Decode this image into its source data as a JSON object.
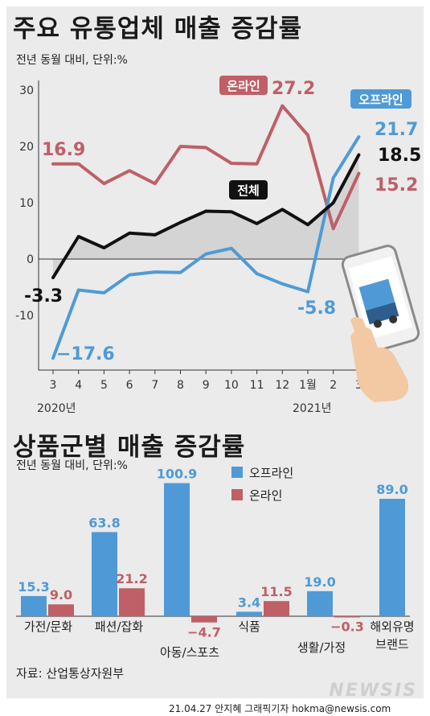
{
  "chart1": {
    "title": "주요 유통업체 매출 증감률",
    "subtitle": "전년 동월 대비, 단위:%"
  },
  "chart2": {
    "title": "상품군별 매출 증감률",
    "subtitle": "전년 동월 대비, 단위:%"
  },
  "source": "자료: 산업통상자원부",
  "credit": "21.04.27 안지혜 그래픽기자 hokma@newsis.com",
  "watermark": "NEWSIS",
  "colors": {
    "offline": "#4f9ad6",
    "online": "#bf5f66",
    "total": "#111111",
    "panel": "#ebebeb"
  },
  "icons": [
    "phone-with-truck-icon"
  ],
  "chart_data": [
    {
      "type": "line",
      "categories": [
        "3",
        "4",
        "5",
        "6",
        "7",
        "8",
        "9",
        "10",
        "11",
        "12",
        "1월",
        "2",
        "3"
      ],
      "year_labels": [
        "2020년",
        "2021년"
      ],
      "yticks": [
        "30",
        "20",
        "10",
        "0",
        "-10"
      ],
      "ylim": [
        -20,
        30
      ],
      "grid": false,
      "series": [
        {
          "name": "온라인",
          "color": "#bf5f66",
          "values": [
            16.9,
            16.9,
            13.4,
            15.7,
            13.4,
            20.0,
            19.8,
            17.0,
            16.9,
            27.2,
            22.0,
            5.4,
            15.2
          ],
          "labels": {
            "0": "16.9",
            "9": "27.2",
            "12": "15.2"
          }
        },
        {
          "name": "오프라인",
          "color": "#4f9ad6",
          "values": [
            -17.6,
            -5.5,
            -6.0,
            -2.8,
            -2.3,
            -2.4,
            0.9,
            1.9,
            -2.6,
            -4.4,
            -5.8,
            14.4,
            21.7
          ],
          "labels": {
            "0": "−17.6",
            "10": "-5.8",
            "12": "21.7"
          }
        },
        {
          "name": "전체",
          "color": "#111111",
          "values": [
            -3.3,
            4.0,
            2.0,
            4.6,
            4.3,
            6.5,
            8.5,
            8.4,
            6.3,
            8.8,
            6.1,
            10.0,
            18.5
          ],
          "labels": {
            "0": "-3.3",
            "12": "18.5"
          }
        }
      ]
    },
    {
      "type": "bar",
      "categories": [
        "가전/문화",
        "패션/잡화",
        "아동/스포츠",
        "식품",
        "생활/가정",
        "해외유명 브랜드"
      ],
      "series": [
        {
          "name": "오프라인",
          "color": "#4f9ad6",
          "values": [
            15.3,
            63.8,
            100.9,
            3.4,
            19.0,
            89.0
          ]
        },
        {
          "name": "온라인",
          "color": "#bf5f66",
          "values": [
            9.0,
            21.2,
            -4.7,
            11.5,
            -0.3,
            null
          ]
        }
      ],
      "value_labels": {
        "offline": [
          "15.3",
          "63.8",
          "100.9",
          "3.4",
          "19.0",
          "89.0"
        ],
        "online": [
          "9.0",
          "21.2",
          "−4.7",
          "11.5",
          "−0.3",
          ""
        ]
      },
      "legend": {
        "placement": "top-center",
        "items": [
          "오프라인",
          "온라인"
        ]
      }
    }
  ]
}
